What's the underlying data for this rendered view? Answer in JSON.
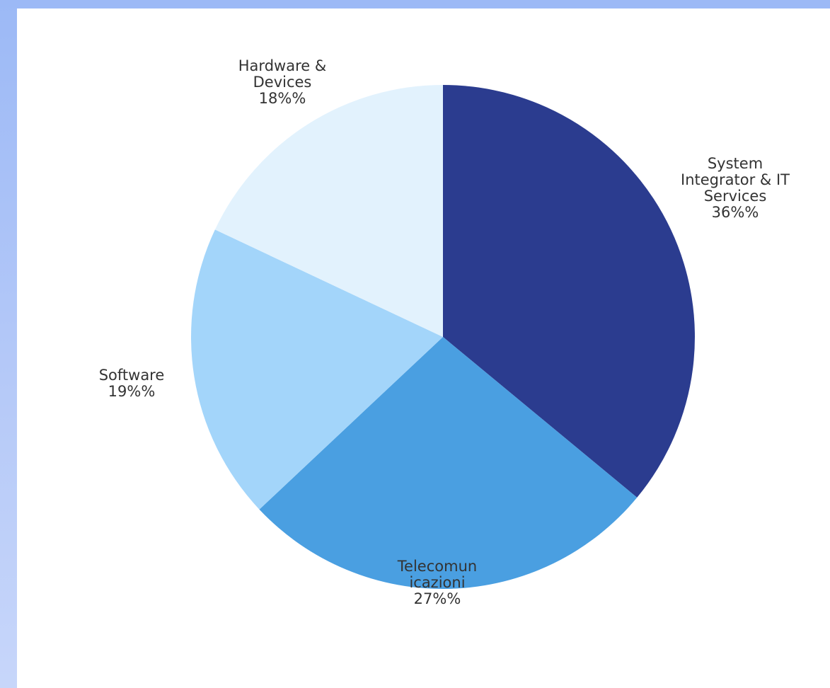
{
  "chart_data": {
    "type": "pie",
    "slices": [
      {
        "label_lines": [
          "System",
          "Integrator & IT",
          "Services"
        ],
        "value": 36,
        "value_text": "36%%",
        "color": "#2b3c8f"
      },
      {
        "label_lines": [
          "Telecomun",
          "icazioni"
        ],
        "value": 27,
        "value_text": "27%%",
        "color": "#4a9fe1"
      },
      {
        "label_lines": [
          "Software"
        ],
        "value": 19,
        "value_text": "19%%",
        "color": "#a3d5fa"
      },
      {
        "label_lines": [
          "Hardware &",
          "Devices"
        ],
        "value": 18,
        "value_text": "18%%",
        "color": "#e2f2fd"
      }
    ],
    "start": "12 o'clock",
    "direction": "clockwise",
    "legend": "none"
  }
}
